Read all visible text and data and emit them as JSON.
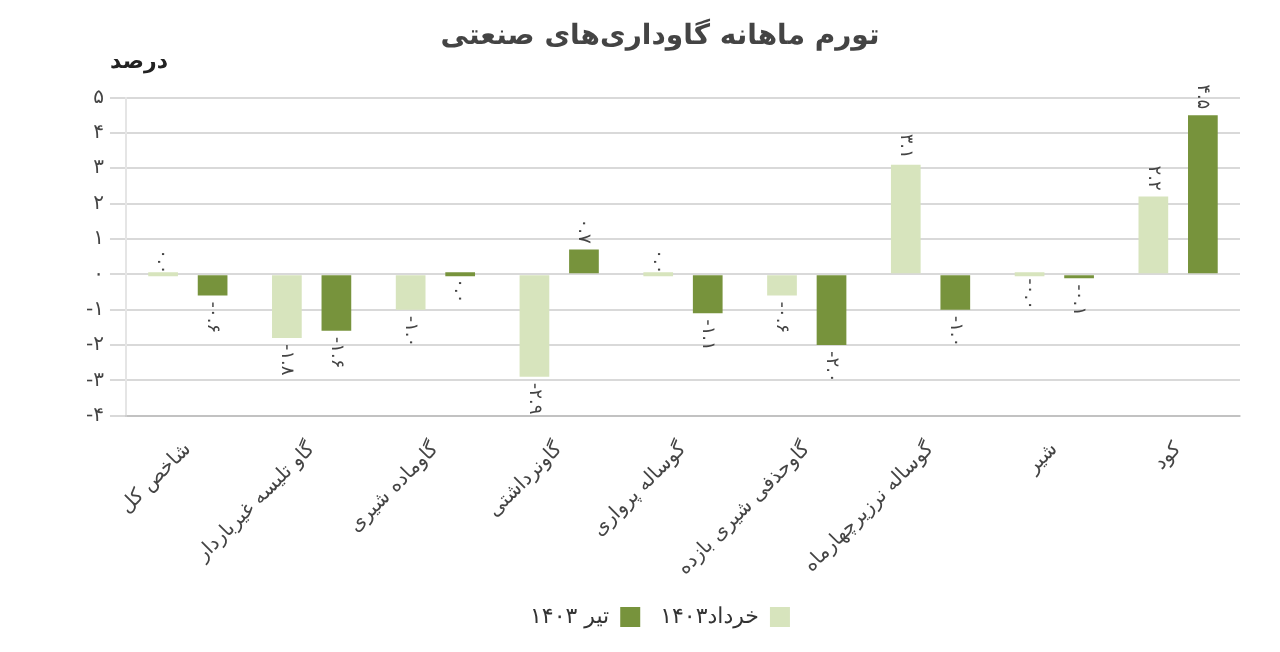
{
  "chart_data": {
    "type": "bar",
    "title": "تورم ماهانه گاوداری‌های صنعتی",
    "ylabel": "درصد",
    "categories": [
      "شاخص کل",
      "گاو تلیسه غیرباردار",
      "گاوماده شیری",
      "گاونرداشتی",
      "گوساله پرواری",
      "گاوحذفی شیری بازده",
      "گوساله نرزیرچهارماه",
      "شیر",
      "کود"
    ],
    "series": [
      {
        "name": "خرداد۱۴۰۳",
        "color": "#d7e4bd",
        "values": [
          0.0,
          -1.8,
          -1.0,
          -2.9,
          0.0,
          -0.6,
          3.1,
          -0.0,
          2.2
        ],
        "value_labels": [
          "۰.۰",
          "-۱.۸",
          "-۱.۰",
          "-۲.۹",
          "۰.۰",
          "-۰.۶",
          "۳.۱",
          "-۰.۰",
          "۲.۲"
        ]
      },
      {
        "name": "تیر ۱۴۰۳",
        "color": "#77933c",
        "values": [
          -0.6,
          -1.6,
          -0.0,
          0.7,
          -1.1,
          -2.0,
          -1.0,
          -0.1,
          4.5
        ],
        "value_labels": [
          "-۰.۶",
          "-۱.۶",
          "۰.۰",
          "۰.۷",
          "-۱.۱",
          "-۲.۰",
          "-۱.۰",
          "-۰.۱",
          "۴.۵"
        ]
      }
    ],
    "ylim": [
      -4,
      5
    ],
    "yticks": [
      {
        "value": -4,
        "label": "-۴"
      },
      {
        "value": -3,
        "label": "-۳"
      },
      {
        "value": -2,
        "label": "-۲"
      },
      {
        "value": -1,
        "label": "-۱"
      },
      {
        "value": 0,
        "label": "۰"
      },
      {
        "value": 1,
        "label": "۱"
      },
      {
        "value": 2,
        "label": "۲"
      },
      {
        "value": 3,
        "label": "۳"
      },
      {
        "value": 4,
        "label": "۴"
      },
      {
        "value": 5,
        "label": "۵"
      }
    ],
    "grid": "y",
    "legend": "bottom"
  }
}
